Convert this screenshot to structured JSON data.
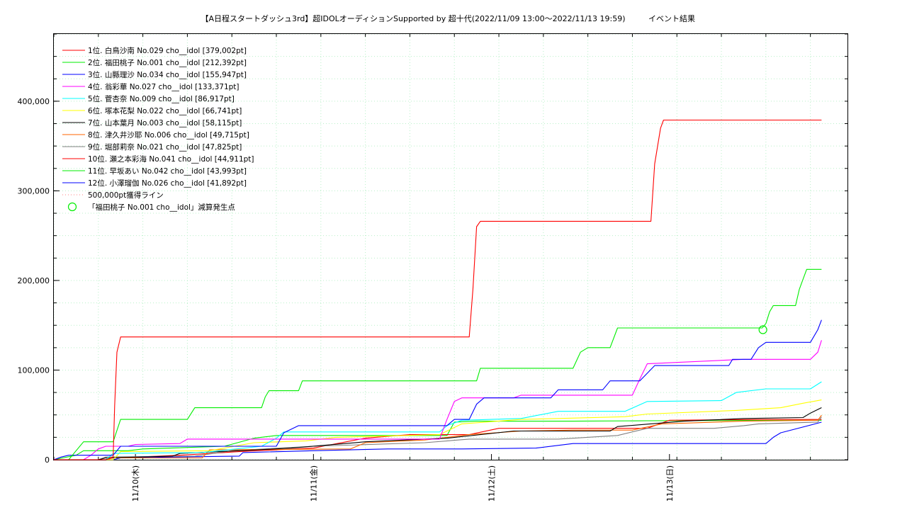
{
  "chart_data": {
    "type": "line",
    "title": "【A日程スタートダッシュ3rd】超IDOLオーディションSupported by 超十代(2022/11/09 13:00～2022/11/13 19:59)",
    "subtitle": "イベント結果",
    "xlabel": "",
    "ylabel": "",
    "x_unit": "hours since 2022/11/09 13:00",
    "xlim": [
      0,
      107
    ],
    "ylim": [
      0,
      475000
    ],
    "x_ticks": [
      {
        "x": 11,
        "label": "11/10(木)"
      },
      {
        "x": 35,
        "label": "11/11(金)"
      },
      {
        "x": 59,
        "label": "11/12(土)"
      },
      {
        "x": 83,
        "label": "11/13(日)"
      }
    ],
    "y_ticks": [
      {
        "y": 0,
        "label": "0"
      },
      {
        "y": 100000,
        "label": "100,000"
      },
      {
        "y": 200000,
        "label": "200,000"
      },
      {
        "y": 300000,
        "label": "300,000"
      },
      {
        "y": 400000,
        "label": "400,000"
      }
    ],
    "grid": true,
    "legend_position": "top-left",
    "series": [
      {
        "name": "1位. 白鳥沙南 No.029 cho__idol [379,002pt]",
        "color": "#ff0000",
        "points": [
          [
            0,
            0
          ],
          [
            7,
            0
          ],
          [
            8,
            3000
          ],
          [
            8.2,
            60000
          ],
          [
            8.5,
            120000
          ],
          [
            9,
            137000
          ],
          [
            56,
            137000
          ],
          [
            56.5,
            190000
          ],
          [
            57,
            260000
          ],
          [
            57.5,
            266000
          ],
          [
            80.5,
            266000
          ],
          [
            81,
            330000
          ],
          [
            81.8,
            370000
          ],
          [
            82.2,
            379002
          ],
          [
            103.5,
            379002
          ]
        ]
      },
      {
        "name": "2位. 福田桃子 No.001 cho__idol [212,392pt]",
        "color": "#00ee00",
        "points": [
          [
            0,
            0
          ],
          [
            2,
            0
          ],
          [
            3,
            10000
          ],
          [
            4,
            20000
          ],
          [
            8,
            20000
          ],
          [
            9,
            45000
          ],
          [
            18,
            45000
          ],
          [
            19,
            58000
          ],
          [
            28,
            58000
          ],
          [
            28.5,
            70000
          ],
          [
            29,
            77000
          ],
          [
            33,
            77000
          ],
          [
            33.5,
            88000
          ],
          [
            57,
            88000
          ],
          [
            57.5,
            102000
          ],
          [
            70,
            102000
          ],
          [
            71,
            120000
          ],
          [
            72,
            125000
          ],
          [
            75,
            125000
          ],
          [
            76,
            147000
          ],
          [
            95.5,
            147000
          ],
          [
            96,
            152000
          ],
          [
            96.5,
            165000
          ],
          [
            97,
            172000
          ],
          [
            100,
            172000
          ],
          [
            100.5,
            190000
          ],
          [
            101.5,
            212392
          ],
          [
            103.5,
            212392
          ]
        ]
      },
      {
        "name": "3位. 山縣理沙 No.034 cho__idol [155,947pt]",
        "color": "#0000ff",
        "points": [
          [
            0,
            0
          ],
          [
            1,
            3000
          ],
          [
            2,
            5000
          ],
          [
            8,
            5000
          ],
          [
            9,
            15000
          ],
          [
            30,
            15000
          ],
          [
            31,
            30000
          ],
          [
            33,
            38000
          ],
          [
            53,
            38000
          ],
          [
            54,
            45000
          ],
          [
            56,
            45000
          ],
          [
            57,
            62000
          ],
          [
            58,
            69000
          ],
          [
            67,
            69000
          ],
          [
            68,
            78000
          ],
          [
            74,
            78000
          ],
          [
            75,
            88000
          ],
          [
            79,
            88000
          ],
          [
            81,
            105000
          ],
          [
            91,
            105000
          ],
          [
            91.5,
            112000
          ],
          [
            94,
            112000
          ],
          [
            95,
            125000
          ],
          [
            96,
            131000
          ],
          [
            102,
            131000
          ],
          [
            103,
            145000
          ],
          [
            103.5,
            155947
          ]
        ]
      },
      {
        "name": "4位. 翁彩華 No.027 cho__idol [133,371pt]",
        "color": "#ff00ff",
        "points": [
          [
            0,
            0
          ],
          [
            4,
            0
          ],
          [
            5,
            5000
          ],
          [
            6,
            12000
          ],
          [
            7,
            15000
          ],
          [
            10,
            15000
          ],
          [
            11,
            17000
          ],
          [
            17,
            18000
          ],
          [
            18,
            23000
          ],
          [
            52,
            23000
          ],
          [
            53,
            45000
          ],
          [
            54,
            65000
          ],
          [
            55,
            69000
          ],
          [
            62,
            69000
          ],
          [
            63,
            72000
          ],
          [
            78,
            72000
          ],
          [
            79,
            90000
          ],
          [
            80,
            107000
          ],
          [
            93,
            112000
          ],
          [
            102,
            112000
          ],
          [
            103,
            120000
          ],
          [
            103.5,
            133371
          ]
        ]
      },
      {
        "name": "5位. 菅杏奈 No.009 cho__idol [86,917pt]",
        "color": "#00ffff",
        "points": [
          [
            0,
            0
          ],
          [
            7,
            0
          ],
          [
            8,
            7000
          ],
          [
            20,
            8000
          ],
          [
            28,
            15000
          ],
          [
            30,
            24000
          ],
          [
            31,
            31000
          ],
          [
            52,
            31000
          ],
          [
            53,
            38000
          ],
          [
            55,
            44000
          ],
          [
            63,
            46000
          ],
          [
            68,
            54000
          ],
          [
            77,
            54000
          ],
          [
            80,
            65000
          ],
          [
            90,
            66000
          ],
          [
            92,
            75000
          ],
          [
            96,
            79000
          ],
          [
            102,
            79000
          ],
          [
            103.5,
            86917
          ]
        ]
      },
      {
        "name": "6位. 塚本花梨 No.022 cho__idol [66,741pt]",
        "color": "#ffff00",
        "points": [
          [
            0,
            0
          ],
          [
            8,
            0
          ],
          [
            9,
            9000
          ],
          [
            21,
            10000
          ],
          [
            27,
            19000
          ],
          [
            34,
            21000
          ],
          [
            38,
            25000
          ],
          [
            52,
            28000
          ],
          [
            55,
            40000
          ],
          [
            63,
            45000
          ],
          [
            68,
            46000
          ],
          [
            77,
            48000
          ],
          [
            80,
            51000
          ],
          [
            92,
            55000
          ],
          [
            98,
            58000
          ],
          [
            101,
            63000
          ],
          [
            103.5,
            66741
          ]
        ]
      },
      {
        "name": "7位. 山本葉月 No.003 cho__idol [58,115pt]",
        "color": "#000000",
        "points": [
          [
            0,
            0
          ],
          [
            6,
            0
          ],
          [
            7,
            2000
          ],
          [
            16,
            4000
          ],
          [
            17,
            7000
          ],
          [
            25,
            10000
          ],
          [
            32,
            13000
          ],
          [
            42,
            20000
          ],
          [
            53,
            24000
          ],
          [
            62,
            32000
          ],
          [
            75,
            32000
          ],
          [
            76,
            37000
          ],
          [
            85,
            43000
          ],
          [
            93,
            46000
          ],
          [
            101,
            47000
          ],
          [
            102,
            52000
          ],
          [
            103.5,
            58115
          ]
        ]
      },
      {
        "name": "8位. 津久井沙耶 No.006 cho__idol [49,715pt]",
        "color": "#ff6600",
        "points": [
          [
            0,
            0
          ],
          [
            7,
            0
          ],
          [
            8,
            2000
          ],
          [
            20,
            2000
          ],
          [
            21,
            11000
          ],
          [
            40,
            12000
          ],
          [
            42,
            19000
          ],
          [
            50,
            22000
          ],
          [
            56,
            28000
          ],
          [
            63,
            32000
          ],
          [
            70,
            33000
          ],
          [
            78,
            33000
          ],
          [
            82,
            40000
          ],
          [
            93,
            43000
          ],
          [
            103,
            44000
          ],
          [
            103.5,
            49715
          ]
        ]
      },
      {
        "name": "9位. 堀部莉奈 No.021 cho__idol [47,825pt]",
        "color": "#808080",
        "points": [
          [
            0,
            0
          ],
          [
            6,
            0
          ],
          [
            7,
            3000
          ],
          [
            19,
            4000
          ],
          [
            24,
            10000
          ],
          [
            35,
            15000
          ],
          [
            50,
            19000
          ],
          [
            56,
            23000
          ],
          [
            68,
            23000
          ],
          [
            76,
            27000
          ],
          [
            80,
            35000
          ],
          [
            89,
            35000
          ],
          [
            93,
            38000
          ],
          [
            95,
            40000
          ],
          [
            103,
            42000
          ],
          [
            103.5,
            47825
          ]
        ]
      },
      {
        "name": "10位. 瀬之本彩海 No.041 cho__idol [44,911pt]",
        "color": "#ff0000",
        "points": [
          [
            0,
            0
          ],
          [
            7,
            0
          ],
          [
            8,
            2000
          ],
          [
            17,
            5000
          ],
          [
            25,
            9000
          ],
          [
            35,
            13000
          ],
          [
            42,
            24000
          ],
          [
            48,
            28000
          ],
          [
            56,
            28000
          ],
          [
            60,
            35000
          ],
          [
            80,
            35000
          ],
          [
            83,
            44000
          ],
          [
            96,
            44911
          ],
          [
            103.5,
            44911
          ]
        ]
      },
      {
        "name": "11位. 早坂あい No.042 cho__idol [43,993pt]",
        "color": "#00ee00",
        "points": [
          [
            0,
            0
          ],
          [
            3,
            5000
          ],
          [
            4,
            10000
          ],
          [
            10,
            10000
          ],
          [
            12,
            12000
          ],
          [
            23,
            15000
          ],
          [
            27,
            24000
          ],
          [
            30,
            27000
          ],
          [
            53,
            27000
          ],
          [
            54,
            42000
          ],
          [
            57,
            43000
          ],
          [
            70,
            43000
          ],
          [
            80,
            43500
          ],
          [
            103.5,
            43993
          ]
        ]
      },
      {
        "name": "12位. 小澤瑠伽 No.026 cho__idol [41,892pt]",
        "color": "#0000ff",
        "points": [
          [
            0,
            0
          ],
          [
            8,
            0
          ],
          [
            9,
            2000
          ],
          [
            16,
            3000
          ],
          [
            25,
            4000
          ],
          [
            25.5,
            8000
          ],
          [
            35,
            10000
          ],
          [
            45,
            12000
          ],
          [
            55,
            12000
          ],
          [
            65,
            13000
          ],
          [
            70,
            18000
          ],
          [
            90,
            18000
          ],
          [
            96,
            18000
          ],
          [
            97,
            25000
          ],
          [
            98,
            30000
          ],
          [
            103.5,
            41892
          ]
        ]
      }
    ],
    "extra_legend": [
      {
        "name": "500,000pt獲得ライン",
        "color": "#ff8080",
        "style": "dotted"
      },
      {
        "name": "「福田桃子 No.001 cho__idol」減算発生点",
        "color": "#00ee00",
        "style": "circle"
      }
    ],
    "markers": [
      {
        "x": 95.6,
        "y": 145000,
        "color": "#00ee00",
        "shape": "circle"
      }
    ]
  }
}
